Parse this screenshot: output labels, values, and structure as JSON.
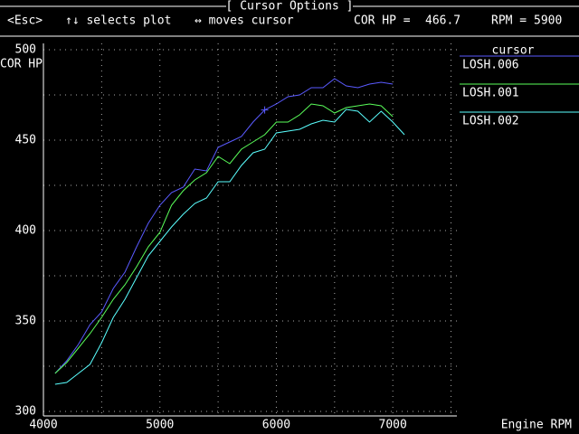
{
  "header": {
    "title": "[ Cursor Options ]",
    "esc": "<Esc>",
    "select_hint": "↑↓ selects plot",
    "move_hint": "↔ moves cursor",
    "y_readout_label": "COR HP =",
    "x_readout_label": "RPM ="
  },
  "chart_data": {
    "type": "line",
    "y_label": "COR HP",
    "x_label": "Engine RPM",
    "legend_title": "cursor",
    "x": [
      4100,
      4200,
      4300,
      4400,
      4500,
      4600,
      4700,
      4800,
      4900,
      5000,
      5100,
      5200,
      5300,
      5400,
      5500,
      5600,
      5700,
      5800,
      5900,
      6000,
      6100,
      6200,
      6300,
      6400,
      6500,
      6600,
      6700,
      6800,
      6900,
      7000,
      7100
    ],
    "series": [
      {
        "name": "LOSH.006",
        "color": "#5a5aff",
        "values": [
          321,
          328,
          337,
          348,
          355,
          368,
          377,
          391,
          404,
          414,
          421,
          424,
          434,
          433,
          446,
          449,
          452,
          460,
          466.7,
          470,
          474,
          475,
          479,
          479,
          484,
          480,
          479,
          481,
          482,
          481,
          null
        ]
      },
      {
        "name": "LOSH.001",
        "color": "#5aff5a",
        "values": [
          321,
          327,
          335,
          343,
          352,
          362,
          370,
          380,
          391,
          399,
          414,
          422,
          428,
          432,
          441,
          437,
          445,
          449,
          453,
          460,
          460,
          464,
          470,
          469,
          465,
          468,
          469,
          470,
          469,
          463,
          null
        ]
      },
      {
        "name": "LOSH.002",
        "color": "#5affff",
        "values": [
          315,
          316,
          321,
          326,
          338,
          352,
          362,
          374,
          386,
          394,
          402,
          409,
          415,
          418,
          427,
          427,
          436,
          443,
          445,
          454,
          455,
          456,
          459,
          461,
          460,
          467,
          466,
          460,
          466,
          460,
          453
        ]
      }
    ],
    "cursor": {
      "x": 5900,
      "y": 466.7,
      "color": "#5a5aff"
    },
    "xlim": [
      4000,
      7550
    ],
    "ylim": [
      297.5,
      503.5
    ],
    "xticks": [
      4000,
      5000,
      6000,
      7000
    ],
    "xminor": [
      4500,
      5500,
      6500,
      7500
    ],
    "yticks": [
      300,
      350,
      400,
      450,
      500
    ],
    "yminor": [
      325,
      375,
      425,
      475
    ],
    "grid": true
  }
}
